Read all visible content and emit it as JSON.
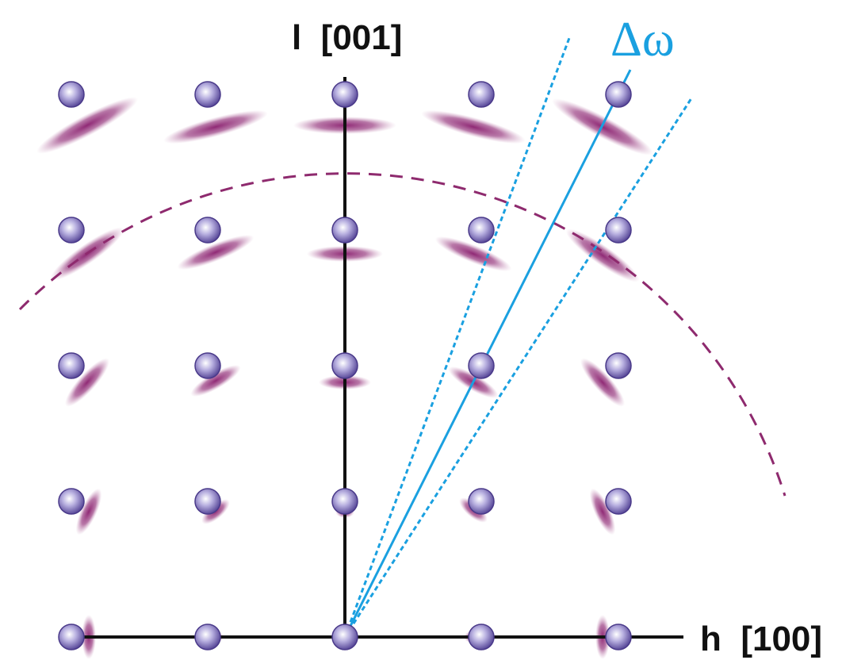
{
  "axes": {
    "vertical": "l  [001]",
    "horizontal": "h  [100]"
  },
  "annotation": "Δω"
}
